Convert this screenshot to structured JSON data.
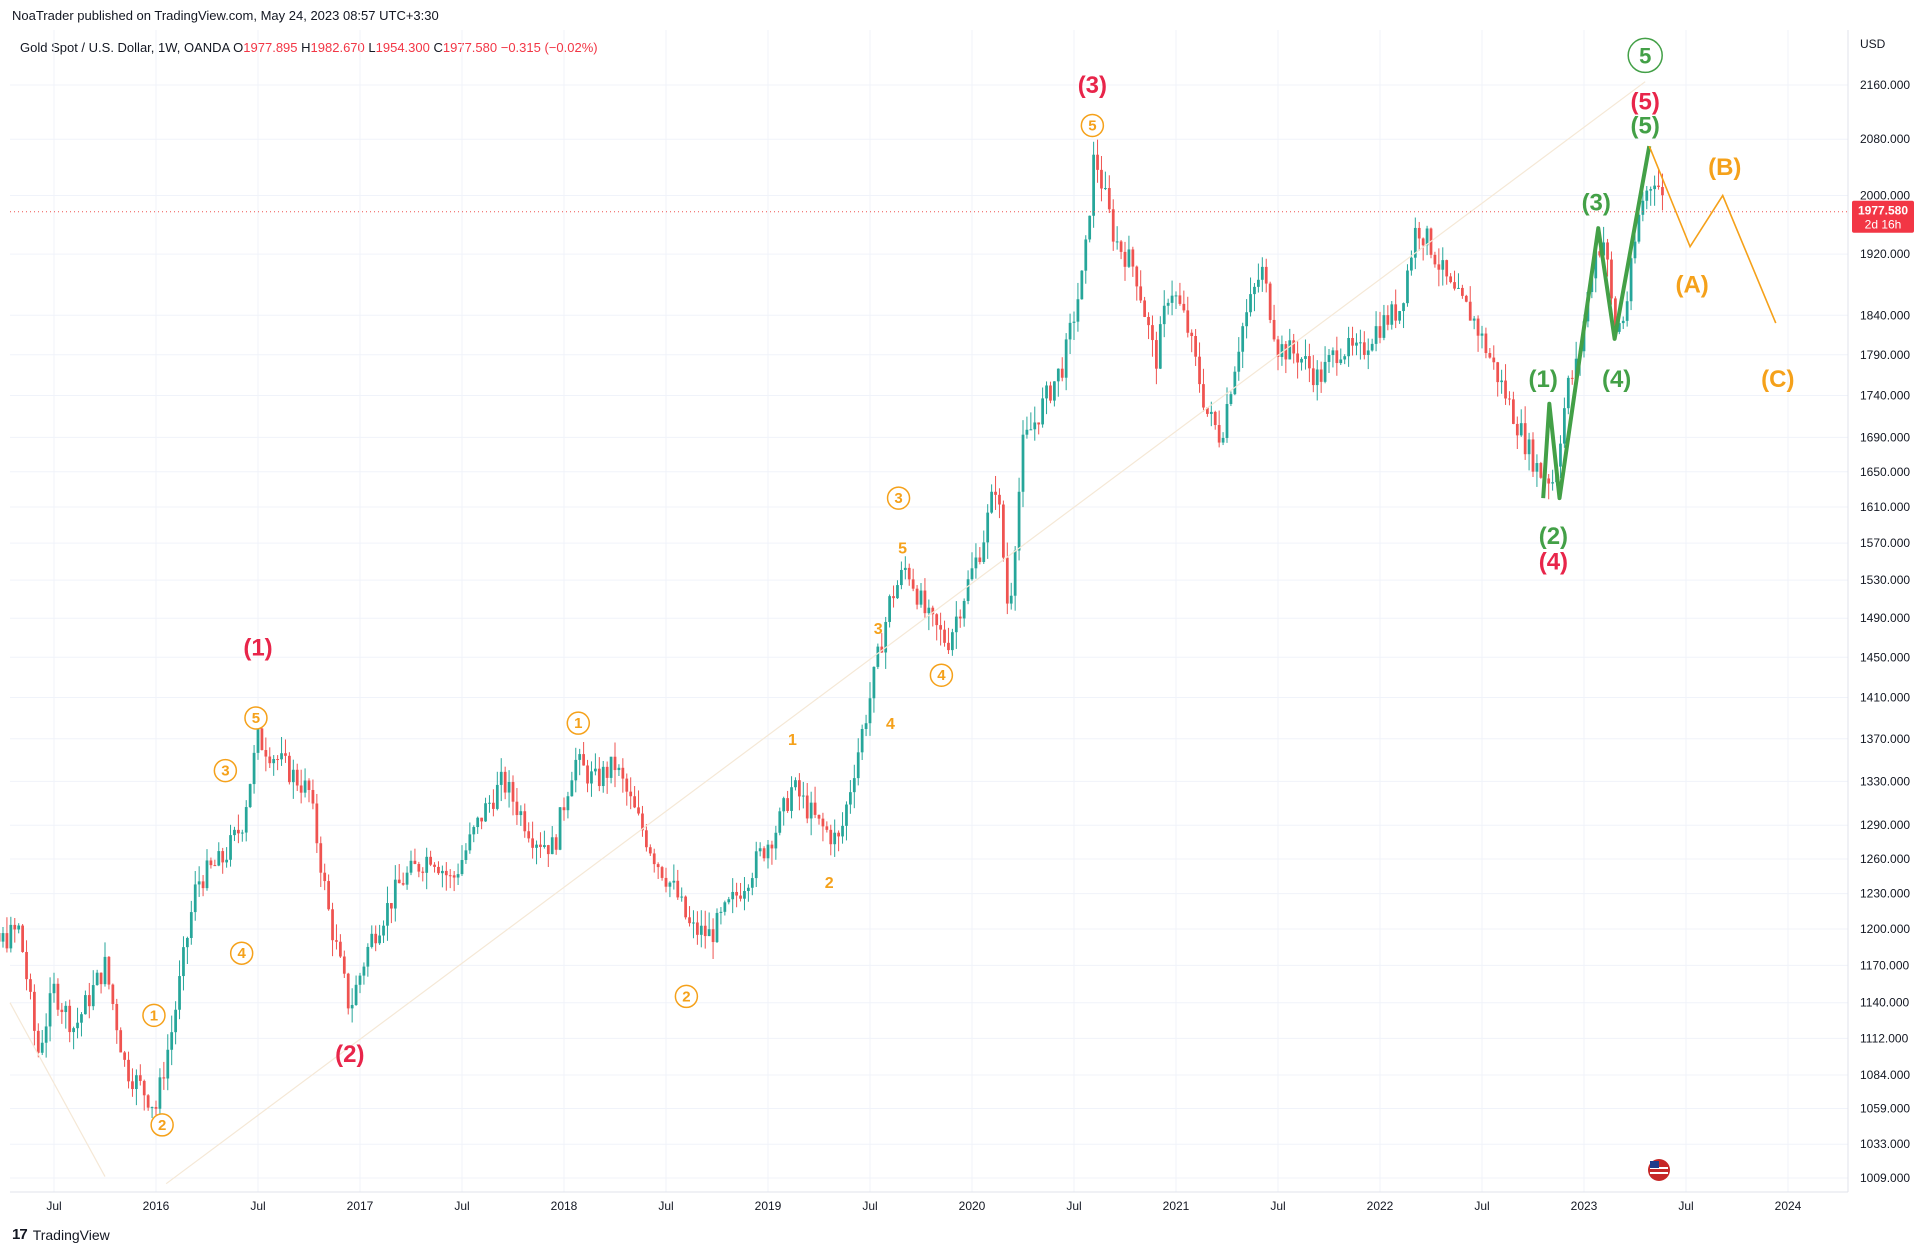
{
  "header": {
    "published": "NoaTrader published on TradingView.com, May 24, 2023 08:57 UTC+3:30",
    "symbol": "Gold Spot / U.S. Dollar, 1W, OANDA",
    "o_label": "O",
    "o": "1977.895",
    "h_label": "H",
    "h": "1982.670",
    "l_label": "L",
    "l": "1954.300",
    "c_label": "C",
    "c": "1977.580",
    "change": "−0.315 (−0.02%)"
  },
  "footer": {
    "brand": "TradingView"
  },
  "colors": {
    "up": "#26a69a",
    "down": "#ef5350",
    "red_label": "#e8254a",
    "orange": "#f5a11a",
    "green": "#43a047",
    "grid": "#f0f3fa"
  },
  "chart_data": {
    "type": "candlestick",
    "currency": "USD",
    "scale": "log",
    "ylim": [
      1000,
      2200
    ],
    "last_price": "1977.580",
    "countdown": "2d 16h",
    "y_ticks": [
      2160,
      2080,
      2000,
      1920,
      1840,
      1790,
      1740,
      1690,
      1650,
      1610,
      1570,
      1530,
      1490,
      1450,
      1410,
      1370,
      1330,
      1290,
      1260,
      1230,
      1200,
      1170,
      1140,
      1112,
      1084,
      1059,
      1033,
      1009
    ],
    "y_tick_labels": [
      "2160.000",
      "2080.000",
      "2000.000",
      "1920.000",
      "1840.000",
      "1790.000",
      "1740.000",
      "1690.000",
      "1650.000",
      "1610.000",
      "1570.000",
      "1530.000",
      "1490.000",
      "1450.000",
      "1410.000",
      "1370.000",
      "1330.000",
      "1290.000",
      "1260.000",
      "1230.000",
      "1200.000",
      "1170.000",
      "1140.000",
      "1112.000",
      "1084.000",
      "1059.000",
      "1033.000",
      "1009.000"
    ],
    "x_ticks": [
      {
        "t": 2015.5,
        "label": "Jul"
      },
      {
        "t": 2016.0,
        "label": "2016"
      },
      {
        "t": 2016.5,
        "label": "Jul"
      },
      {
        "t": 2017.0,
        "label": "2017"
      },
      {
        "t": 2017.5,
        "label": "Jul"
      },
      {
        "t": 2018.0,
        "label": "2018"
      },
      {
        "t": 2018.5,
        "label": "Jul"
      },
      {
        "t": 2019.0,
        "label": "2019"
      },
      {
        "t": 2019.5,
        "label": "Jul"
      },
      {
        "t": 2020.0,
        "label": "2020"
      },
      {
        "t": 2020.5,
        "label": "Jul"
      },
      {
        "t": 2021.0,
        "label": "2021"
      },
      {
        "t": 2021.5,
        "label": "Jul"
      },
      {
        "t": 2022.0,
        "label": "2022"
      },
      {
        "t": 2022.5,
        "label": "Jul"
      },
      {
        "t": 2023.0,
        "label": "2023"
      },
      {
        "t": 2023.5,
        "label": "Jul"
      },
      {
        "t": 2024.0,
        "label": "2024"
      }
    ],
    "price_path": [
      [
        2015.0,
        1195
      ],
      [
        2015.08,
        1215
      ],
      [
        2015.2,
        1185
      ],
      [
        2015.33,
        1200
      ],
      [
        2015.42,
        1100
      ],
      [
        2015.5,
        1150
      ],
      [
        2015.6,
        1120
      ],
      [
        2015.75,
        1170
      ],
      [
        2015.85,
        1090
      ],
      [
        2015.95,
        1070
      ],
      [
        2016.0,
        1060
      ],
      [
        2016.08,
        1120
      ],
      [
        2016.2,
        1240
      ],
      [
        2016.33,
        1260
      ],
      [
        2016.42,
        1290
      ],
      [
        2016.5,
        1370
      ],
      [
        2016.6,
        1350
      ],
      [
        2016.75,
        1320
      ],
      [
        2016.85,
        1210
      ],
      [
        2016.95,
        1135
      ],
      [
        2017.05,
        1190
      ],
      [
        2017.2,
        1240
      ],
      [
        2017.35,
        1265
      ],
      [
        2017.45,
        1240
      ],
      [
        2017.6,
        1300
      ],
      [
        2017.7,
        1330
      ],
      [
        2017.85,
        1280
      ],
      [
        2017.95,
        1270
      ],
      [
        2018.05,
        1350
      ],
      [
        2018.15,
        1330
      ],
      [
        2018.25,
        1345
      ],
      [
        2018.35,
        1300
      ],
      [
        2018.45,
        1260
      ],
      [
        2018.55,
        1230
      ],
      [
        2018.62,
        1200
      ],
      [
        2018.72,
        1195
      ],
      [
        2018.85,
        1230
      ],
      [
        2018.95,
        1260
      ],
      [
        2019.05,
        1290
      ],
      [
        2019.12,
        1325
      ],
      [
        2019.25,
        1290
      ],
      [
        2019.35,
        1275
      ],
      [
        2019.42,
        1340
      ],
      [
        2019.5,
        1410
      ],
      [
        2019.6,
        1510
      ],
      [
        2019.68,
        1545
      ],
      [
        2019.78,
        1490
      ],
      [
        2019.88,
        1465
      ],
      [
        2019.97,
        1520
      ],
      [
        2020.05,
        1570
      ],
      [
        2020.12,
        1640
      ],
      [
        2020.18,
        1490
      ],
      [
        2020.25,
        1680
      ],
      [
        2020.35,
        1730
      ],
      [
        2020.45,
        1780
      ],
      [
        2020.55,
        1900
      ],
      [
        2020.6,
        2060
      ],
      [
        2020.7,
        1940
      ],
      [
        2020.8,
        1900
      ],
      [
        2020.9,
        1780
      ],
      [
        2020.97,
        1880
      ],
      [
        2021.05,
        1830
      ],
      [
        2021.15,
        1720
      ],
      [
        2021.22,
        1690
      ],
      [
        2021.32,
        1820
      ],
      [
        2021.42,
        1900
      ],
      [
        2021.5,
        1800
      ],
      [
        2021.6,
        1790
      ],
      [
        2021.7,
        1760
      ],
      [
        2021.8,
        1800
      ],
      [
        2021.9,
        1790
      ],
      [
        2021.97,
        1820
      ],
      [
        2022.1,
        1850
      ],
      [
        2022.18,
        1960
      ],
      [
        2022.25,
        1930
      ],
      [
        2022.35,
        1870
      ],
      [
        2022.45,
        1840
      ],
      [
        2022.55,
        1780
      ],
      [
        2022.65,
        1720
      ],
      [
        2022.72,
        1680
      ],
      [
        2022.78,
        1650
      ],
      [
        2022.85,
        1640
      ],
      [
        2022.92,
        1750
      ],
      [
        2022.97,
        1780
      ],
      [
        2023.05,
        1920
      ],
      [
        2023.1,
        1940
      ],
      [
        2023.15,
        1820
      ],
      [
        2023.2,
        1840
      ],
      [
        2023.28,
        1990
      ],
      [
        2023.35,
        2030
      ],
      [
        2023.4,
        1977
      ]
    ],
    "projection": [
      {
        "t": 2023.32,
        "p": 2070
      },
      {
        "t": 2023.52,
        "p": 1930
      },
      {
        "t": 2023.68,
        "p": 2000
      },
      {
        "t": 2023.94,
        "p": 1830
      }
    ],
    "green_path": [
      {
        "t": 2022.8,
        "p": 1620
      },
      {
        "t": 2022.83,
        "p": 1730
      },
      {
        "t": 2022.88,
        "p": 1620
      },
      {
        "t": 2023.07,
        "p": 1955
      },
      {
        "t": 2023.15,
        "p": 1810
      },
      {
        "t": 2023.32,
        "p": 2070
      }
    ],
    "wave_labels": [
      {
        "text": "(1)",
        "t": 2016.5,
        "p": 1460,
        "color": "red_label",
        "style": "paren"
      },
      {
        "text": "(2)",
        "t": 2016.95,
        "p": 1100,
        "color": "red_label",
        "style": "paren"
      },
      {
        "text": "(3)",
        "t": 2020.59,
        "p": 2160,
        "color": "red_label",
        "style": "paren"
      },
      {
        "text": "(4)",
        "t": 2022.85,
        "p": 1550,
        "color": "red_label",
        "style": "paren"
      },
      {
        "text": "(5)",
        "t": 2023.3,
        "p": 2135,
        "color": "red_label",
        "style": "paren"
      },
      {
        "text": "1",
        "t": 2015.99,
        "p": 1130,
        "color": "orange",
        "style": "circle"
      },
      {
        "text": "2",
        "t": 2016.03,
        "p": 1047,
        "color": "orange",
        "style": "circle"
      },
      {
        "text": "3",
        "t": 2016.34,
        "p": 1340,
        "color": "orange",
        "style": "circle"
      },
      {
        "text": "4",
        "t": 2016.42,
        "p": 1180,
        "color": "orange",
        "style": "circle"
      },
      {
        "text": "5",
        "t": 2016.49,
        "p": 1390,
        "color": "orange",
        "style": "circle"
      },
      {
        "text": "1",
        "t": 2018.07,
        "p": 1385,
        "color": "orange",
        "style": "circle"
      },
      {
        "text": "2",
        "t": 2018.6,
        "p": 1145,
        "color": "orange",
        "style": "circle"
      },
      {
        "text": "3",
        "t": 2019.64,
        "p": 1620,
        "color": "orange",
        "style": "circle"
      },
      {
        "text": "4",
        "t": 2019.85,
        "p": 1432,
        "color": "orange",
        "style": "circle"
      },
      {
        "text": "5",
        "t": 2020.59,
        "p": 2100,
        "color": "orange",
        "style": "circle"
      },
      {
        "text": "1",
        "t": 2019.12,
        "p": 1370,
        "color": "orange",
        "style": "plain"
      },
      {
        "text": "2",
        "t": 2019.3,
        "p": 1240,
        "color": "orange",
        "style": "plain"
      },
      {
        "text": "3",
        "t": 2019.54,
        "p": 1480,
        "color": "orange",
        "style": "plain"
      },
      {
        "text": "4",
        "t": 2019.6,
        "p": 1385,
        "color": "orange",
        "style": "plain"
      },
      {
        "text": "5",
        "t": 2019.66,
        "p": 1565,
        "color": "orange",
        "style": "plain"
      },
      {
        "text": "(1)",
        "t": 2022.8,
        "p": 1760,
        "color": "green",
        "style": "paren"
      },
      {
        "text": "(2)",
        "t": 2022.85,
        "p": 1578,
        "color": "green",
        "style": "paren"
      },
      {
        "text": "(3)",
        "t": 2023.06,
        "p": 1990,
        "color": "green",
        "style": "paren"
      },
      {
        "text": "(4)",
        "t": 2023.16,
        "p": 1760,
        "color": "green",
        "style": "paren"
      },
      {
        "text": "(5)",
        "t": 2023.3,
        "p": 2100,
        "color": "green",
        "style": "paren"
      },
      {
        "text": "5",
        "t": 2023.3,
        "p": 2205,
        "color": "green",
        "style": "circle-big"
      },
      {
        "text": "(A)",
        "t": 2023.53,
        "p": 1880,
        "color": "orange",
        "style": "paren"
      },
      {
        "text": "(B)",
        "t": 2023.69,
        "p": 2040,
        "color": "orange",
        "style": "paren"
      },
      {
        "text": "(C)",
        "t": 2023.95,
        "p": 1760,
        "color": "orange",
        "style": "paren"
      }
    ]
  }
}
